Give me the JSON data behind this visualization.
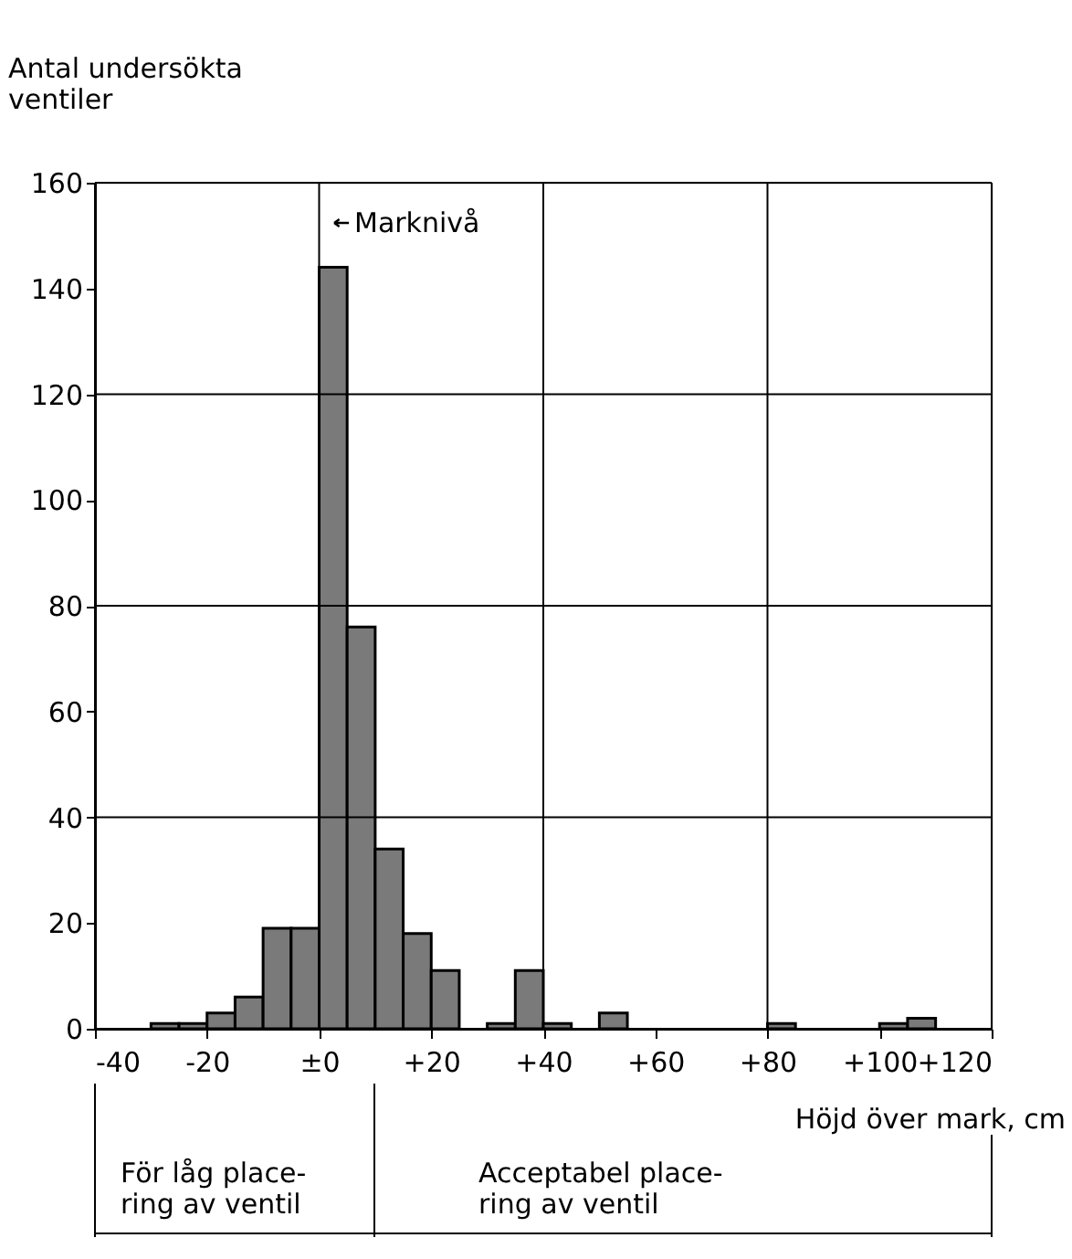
{
  "chart_data": {
    "type": "histogram",
    "ylabel": "Antal undersökta\nventiler",
    "xlabel": "Höjd över mark, cm",
    "bins": [
      -40,
      -35,
      -30,
      -25,
      -20,
      -15,
      -10,
      -5,
      0,
      5,
      10,
      15,
      20,
      25,
      30,
      35,
      40,
      45,
      50,
      55,
      60,
      65,
      70,
      75,
      80,
      85,
      90,
      95,
      100,
      105,
      110,
      115,
      120
    ],
    "values": [
      0,
      0,
      1,
      1,
      3,
      6,
      19,
      19,
      144,
      76,
      34,
      18,
      11,
      0,
      1,
      11,
      1,
      0,
      3,
      0,
      0,
      0,
      0,
      0,
      1,
      0,
      0,
      0,
      1,
      2,
      0,
      0
    ],
    "color": "#7a7a7a",
    "xlim": [
      -40,
      120
    ],
    "xticks": [
      {
        "value": -40,
        "label": "-40"
      },
      {
        "value": -20,
        "label": "-20"
      },
      {
        "value": 0,
        "label": "±0"
      },
      {
        "value": 20,
        "label": "+20"
      },
      {
        "value": 40,
        "label": "+40"
      },
      {
        "value": 60,
        "label": "+60"
      },
      {
        "value": 80,
        "label": "+80"
      },
      {
        "value": 100,
        "label": "+100"
      },
      {
        "value": 120,
        "label": "+120"
      }
    ],
    "ylim": [
      0,
      160
    ],
    "yticks": [
      0,
      20,
      40,
      60,
      80,
      100,
      120,
      140,
      160
    ],
    "grid": true,
    "annotations": [
      "Marknivå",
      "För låg place-\nring av ventil",
      "Acceptabel place-\nring av ventil"
    ]
  }
}
